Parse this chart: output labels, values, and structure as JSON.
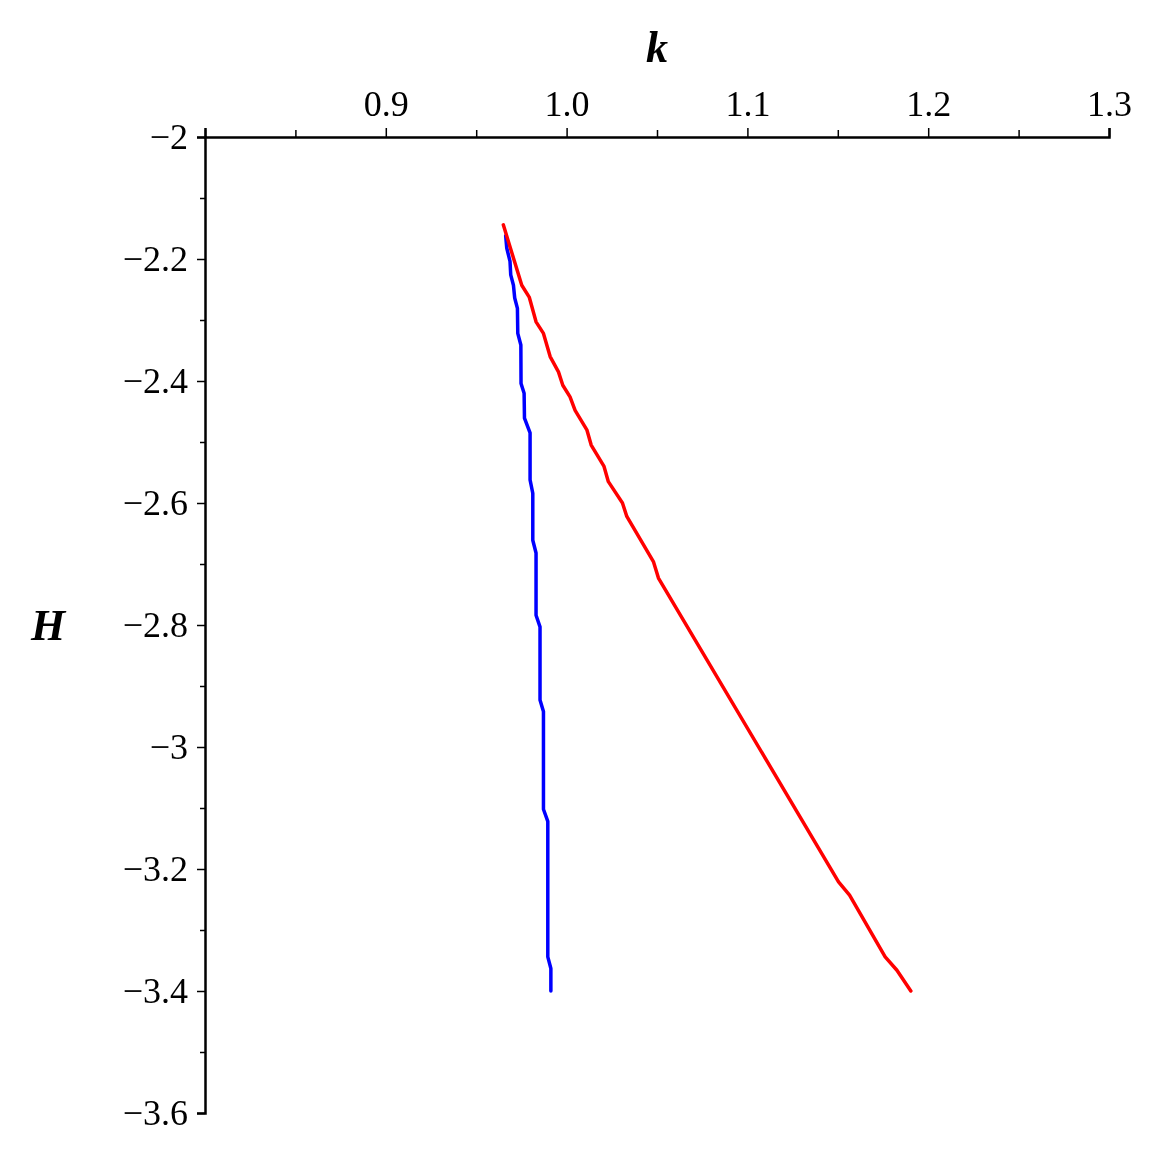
{
  "chart_data": {
    "type": "line",
    "xlabel": "k",
    "ylabel": "H",
    "xlim": [
      0.8,
      1.3
    ],
    "xticks": [
      {
        "value": 0.8,
        "label": null
      },
      {
        "value": 0.85,
        "label": null
      },
      0.9,
      {
        "value": 0.95,
        "label": null
      },
      {
        "value": 1,
        "label": "1.0"
      },
      {
        "value": 1.05,
        "label": null
      },
      1.1,
      {
        "value": 1.15,
        "label": null
      },
      1.2,
      {
        "value": 1.25,
        "label": null
      },
      1.3
    ],
    "ylim": [
      -3.6,
      -2
    ],
    "yticks": [
      {
        "value": -2,
        "label": "−2"
      },
      {
        "value": -2.1,
        "label": null
      },
      {
        "value": -2.2,
        "label": "−2.2"
      },
      {
        "value": -2.3,
        "label": null
      },
      {
        "value": -2.4,
        "label": "−2.4"
      },
      {
        "value": -2.5,
        "label": null
      },
      {
        "value": -2.6,
        "label": "−2.6"
      },
      {
        "value": -2.7,
        "label": null
      },
      {
        "value": -2.8,
        "label": "−2.8"
      },
      {
        "value": -2.9,
        "label": null
      },
      {
        "value": -3,
        "label": "−3"
      },
      {
        "value": -3.1,
        "label": null
      },
      {
        "value": -3.2,
        "label": "−3.2"
      },
      {
        "value": -3.3,
        "label": null
      },
      {
        "value": -3.4,
        "label": "−3.4"
      },
      {
        "value": -3.5,
        "label": null
      },
      {
        "value": -3.6,
        "label": "−3.6"
      }
    ],
    "series": [
      {
        "color": "#0000ff",
        "x": [
          0.9663,
          0.9669,
          0.9687,
          0.9691,
          0.9706,
          0.9713,
          0.9728,
          0.973,
          0.9747,
          0.9748,
          0.9765,
          0.9767,
          0.9798,
          0.9798,
          0.9813,
          0.9813,
          0.9831,
          0.9831,
          0.9853,
          0.9853,
          0.9872,
          0.9872,
          0.9896,
          0.9896,
          0.9913,
          0.9913
        ],
        "values": [
          -2.162,
          -2.182,
          -2.204,
          -2.226,
          -2.243,
          -2.264,
          -2.281,
          -2.322,
          -2.341,
          -2.404,
          -2.42,
          -2.461,
          -2.485,
          -2.562,
          -2.584,
          -2.661,
          -2.682,
          -2.784,
          -2.803,
          -2.923,
          -2.942,
          -3.102,
          -3.122,
          -3.344,
          -3.363,
          -3.4
        ]
      },
      {
        "color": "#ff0000",
        "x": [
          0.965,
          0.9752,
          0.9794,
          0.9831,
          0.9872,
          0.9909,
          0.9955,
          0.9979,
          1.0019,
          1.0047,
          1.0112,
          1.0136,
          1.0207,
          1.0231,
          1.0309,
          1.0333,
          1.048,
          1.0508,
          1.1504,
          1.1565,
          1.1762,
          1.1827,
          1.1904
        ],
        "values": [
          -2.144,
          -2.243,
          -2.263,
          -2.303,
          -2.322,
          -2.36,
          -2.385,
          -2.407,
          -2.426,
          -2.448,
          -2.48,
          -2.505,
          -2.54,
          -2.565,
          -2.6,
          -2.622,
          -2.696,
          -2.723,
          -3.221,
          -3.243,
          -3.344,
          -3.366,
          -3.4
        ]
      }
    ]
  }
}
